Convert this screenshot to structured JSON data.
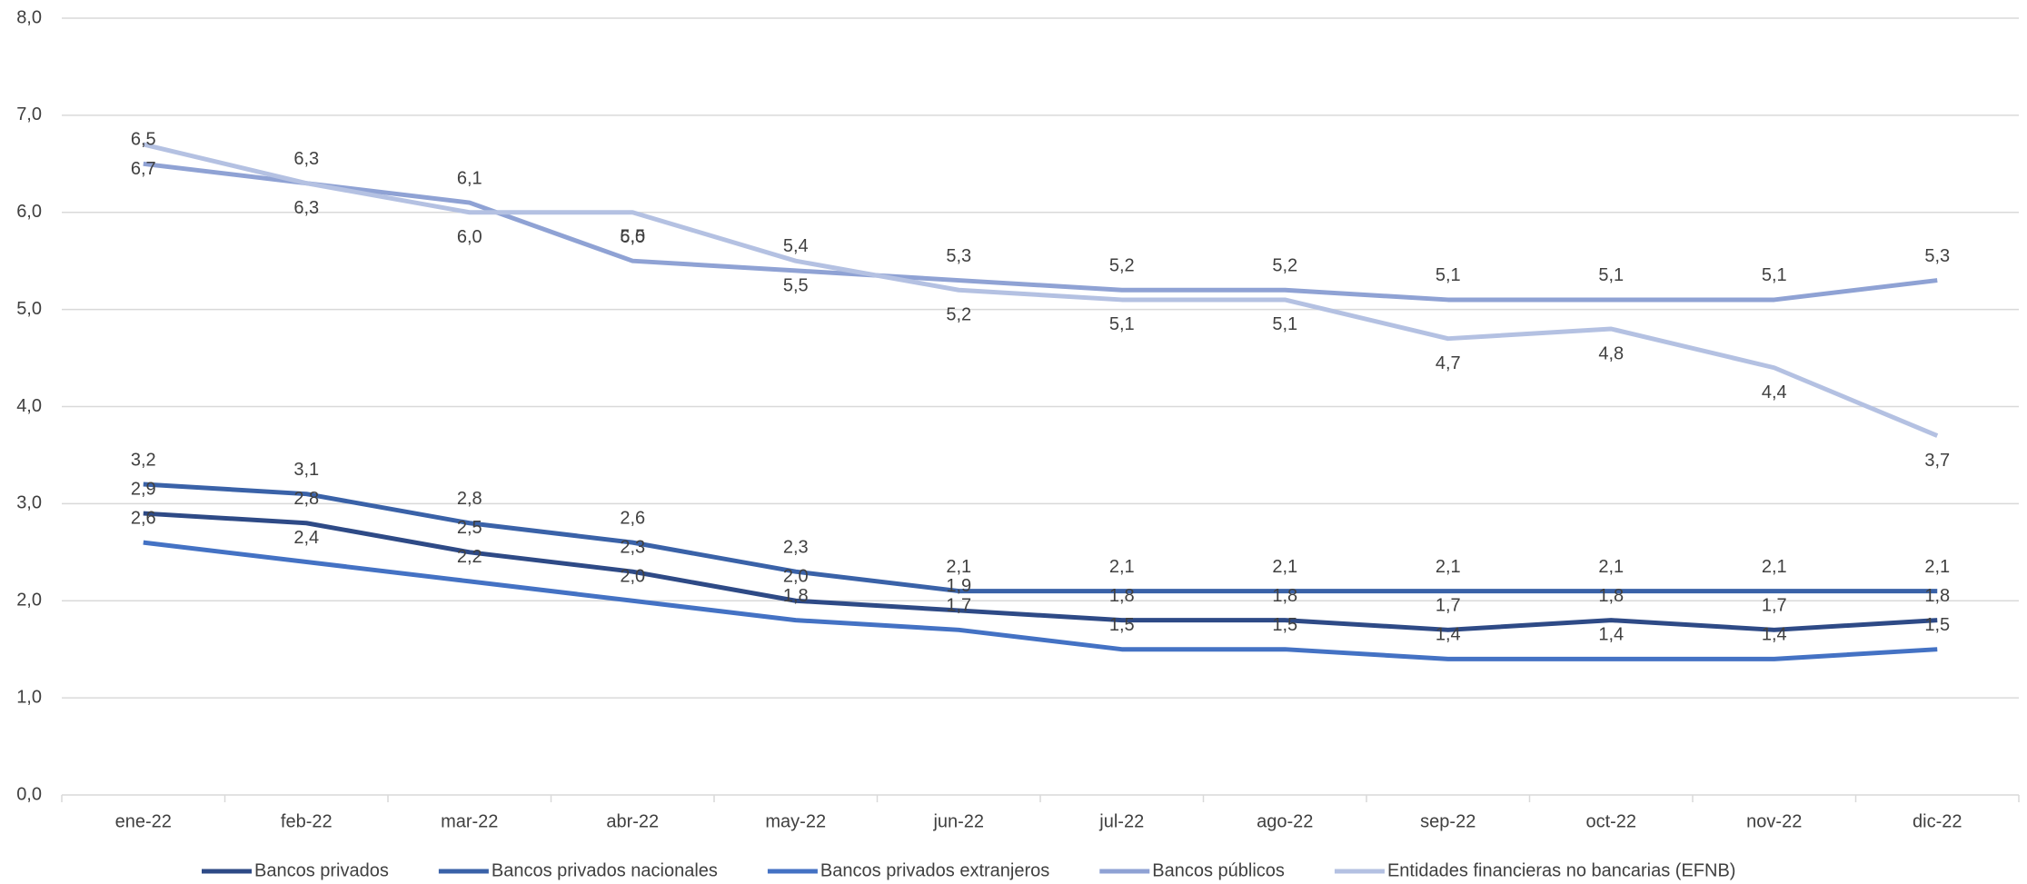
{
  "chart_data": {
    "type": "line",
    "categories": [
      "ene-22",
      "feb-22",
      "mar-22",
      "abr-22",
      "may-22",
      "jun-22",
      "jul-22",
      "ago-22",
      "sep-22",
      "oct-22",
      "nov-22",
      "dic-22"
    ],
    "ylim": [
      0,
      8
    ],
    "yticks": [
      {
        "value": 0,
        "label": "0,0"
      },
      {
        "value": 1,
        "label": "1,0"
      },
      {
        "value": 2,
        "label": "2,0"
      },
      {
        "value": 3,
        "label": "3,0"
      },
      {
        "value": 4,
        "label": "4,0"
      },
      {
        "value": 5,
        "label": "5,0"
      },
      {
        "value": 6,
        "label": "6,0"
      },
      {
        "value": 7,
        "label": "7,0"
      },
      {
        "value": 8,
        "label": "8,0"
      }
    ],
    "grid": true,
    "legend": "bottom",
    "series": [
      {
        "name": "Bancos privados",
        "color": "#2E4A86",
        "values": [
          2.9,
          2.8,
          2.5,
          2.3,
          2.0,
          1.9,
          1.8,
          1.8,
          1.7,
          1.8,
          1.7,
          1.8
        ],
        "value_labels": [
          "2,9",
          "2,8",
          "2,5",
          "2,3",
          "2,0",
          "1,9",
          "1,8",
          "1,8",
          "1,7",
          "1,8",
          "1,7",
          "1,8"
        ]
      },
      {
        "name": "Bancos privados nacionales",
        "color": "#3A62A8",
        "values": [
          3.2,
          3.1,
          2.8,
          2.6,
          2.3,
          2.1,
          2.1,
          2.1,
          2.1,
          2.1,
          2.1,
          2.1
        ],
        "value_labels": [
          "3,2",
          "3,1",
          "2,8",
          "2,6",
          "2,3",
          "2,1",
          "2,1",
          "2,1",
          "2,1",
          "2,1",
          "2,1",
          "2,1"
        ]
      },
      {
        "name": "Bancos privados extranjeros",
        "color": "#4472C4",
        "values": [
          2.6,
          2.4,
          2.2,
          2.0,
          1.8,
          1.7,
          1.5,
          1.5,
          1.4,
          1.4,
          1.4,
          1.5
        ],
        "value_labels": [
          "2,6",
          "2,4",
          "2,2",
          "2,0",
          "1,8",
          "1,7",
          "1,5",
          "1,5",
          "1,4",
          "1,4",
          "1,4",
          "1,5"
        ]
      },
      {
        "name": "Bancos públicos",
        "color": "#8FA2D4",
        "values": [
          6.5,
          6.3,
          6.1,
          5.5,
          5.4,
          5.3,
          5.2,
          5.2,
          5.1,
          5.1,
          5.1,
          5.3
        ],
        "value_labels": [
          "6,5",
          "6,3",
          "6,1",
          "5,5",
          "5,4",
          "5,3",
          "5,2",
          "5,2",
          "5,1",
          "5,1",
          "5,1",
          "5,3"
        ]
      },
      {
        "name": "Entidades financieras no bancarias (EFNB)",
        "color": "#B4C1E2",
        "values": [
          6.7,
          6.3,
          6.0,
          6.0,
          5.5,
          5.2,
          5.1,
          5.1,
          4.7,
          4.8,
          4.4,
          3.7
        ],
        "value_labels": [
          "6,7",
          "6,3",
          "6,0",
          "6,0",
          "5,5",
          "5,2",
          "5,1",
          "5,1",
          "4,7",
          "4,8",
          "4,4",
          "3,7"
        ]
      }
    ]
  }
}
